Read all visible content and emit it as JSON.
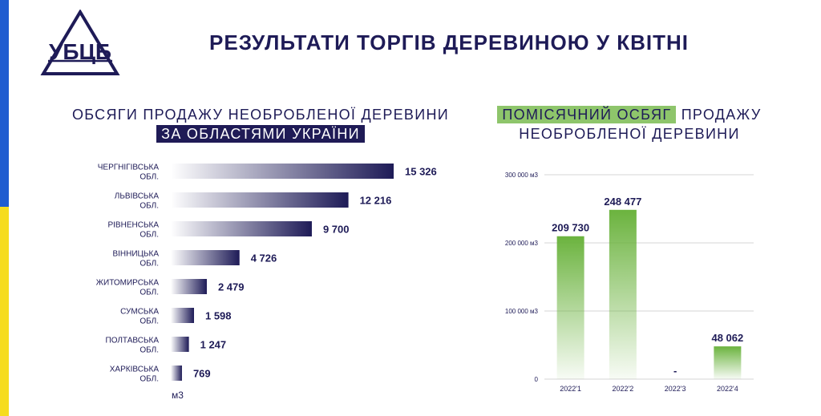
{
  "header": {
    "title": "РЕЗУЛЬТАТИ ТОРГІВ ДЕРЕВИНОЮ У КВІТНІ",
    "logo_text": "УБЦБ"
  },
  "colors": {
    "flag_blue": "#1f5cd0",
    "flag_yellow": "#f6dc1e",
    "navy": "#1e1b57",
    "green": "#6bb33e"
  },
  "left_panel": {
    "title_line1": "ОБСЯГИ ПРОДАЖУ НЕОБРОБЛЕНОЇ ДЕРЕВИНИ",
    "title_line2": "ЗА ОБЛАСТЯМИ УКРАЇНИ"
  },
  "right_panel": {
    "title_highlight": "ПОМІСЯЧНИЙ ОСБЯГ",
    "title_rest": "ПРОДАЖУ",
    "title_line2": "НЕОБРОБЛЕНОЇ ДЕРЕВИНИ"
  },
  "chart_data": [
    {
      "type": "bar",
      "orientation": "horizontal",
      "categories": [
        [
          "ЧЕРГНІГІВСЬКА",
          "ОБЛ."
        ],
        [
          "ЛЬВІВСЬКА",
          "ОБЛ."
        ],
        [
          "РІВНЕНСЬКА",
          "ОБЛ."
        ],
        [
          "ВІННИЦЬКА",
          "ОБЛ."
        ],
        [
          "ЖИТОМИРСЬКА",
          "ОБЛ."
        ],
        [
          "СУМСЬКА",
          "ОБЛ."
        ],
        [
          "ПОЛТАВСЬКА",
          "ОБЛ."
        ],
        [
          "ХАРКІВСЬКА",
          "ОБЛ."
        ]
      ],
      "values": [
        15326,
        12216,
        9700,
        4726,
        2479,
        1598,
        1247,
        769
      ],
      "value_labels": [
        "15 326",
        "12 216",
        "9 700",
        "4 726",
        "2 479",
        "1 598",
        "1 247",
        "769"
      ],
      "unit_label": "м3",
      "grid": false
    },
    {
      "type": "bar",
      "categories": [
        "2022'1",
        "2022'2",
        "2022'3",
        "2022'4"
      ],
      "values": [
        209730,
        248477,
        0,
        48062
      ],
      "value_labels": [
        "209 730",
        "248 477",
        "-",
        "48 062"
      ],
      "y_ticks": [
        0,
        100000,
        200000,
        300000
      ],
      "y_tick_labels": [
        "0",
        "100 000 м3",
        "200 000 м3",
        "300 000 м3"
      ],
      "ylim": [
        0,
        300000
      ],
      "grid": true
    }
  ]
}
